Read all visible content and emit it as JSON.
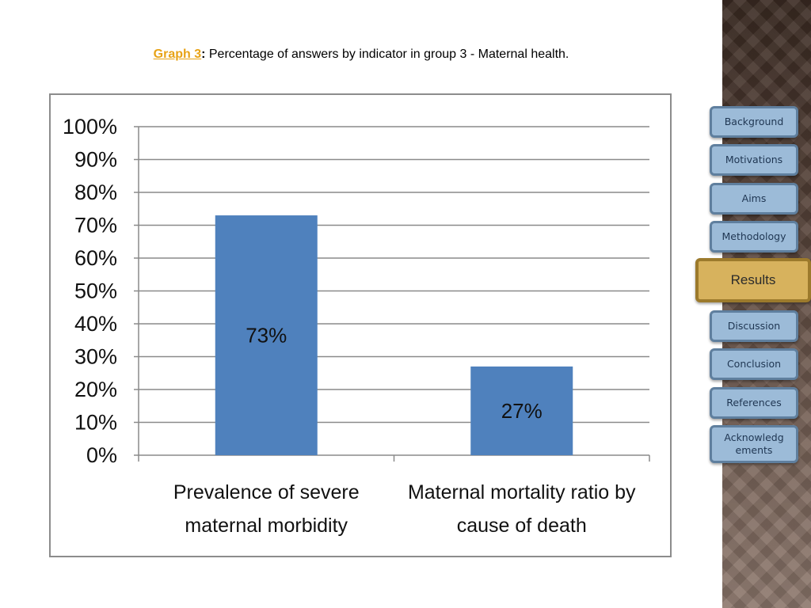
{
  "title": {
    "lead": "Graph 3",
    "colon": ":",
    "text": " Percentage of answers by indicator in group 3 - Maternal health."
  },
  "nav": {
    "items": [
      {
        "label": "Background"
      },
      {
        "label": "Motivations"
      },
      {
        "label": "Aims"
      },
      {
        "label": "Methodology"
      },
      {
        "label": "Results"
      },
      {
        "label": "Discussion"
      },
      {
        "label": "Conclusion"
      },
      {
        "label": "References"
      },
      {
        "label": "Acknowledg ements"
      }
    ],
    "active_index": 4
  },
  "colors": {
    "bar": "#4f81bd",
    "title_lead": "#e8a317",
    "nav_button": "#9cbbd8",
    "nav_active": "#d7b25d"
  },
  "chart_data": {
    "type": "bar",
    "categories": [
      "Prevalence of severe maternal morbidity",
      "Maternal mortality ratio by cause of death"
    ],
    "category_lines": [
      [
        "Prevalence of severe",
        "maternal morbidity"
      ],
      [
        "Maternal mortality ratio by",
        "cause of death"
      ]
    ],
    "values": [
      73,
      27
    ],
    "data_labels": [
      "73%",
      "27%"
    ],
    "yticks": [
      "0%",
      "10%",
      "20%",
      "30%",
      "40%",
      "50%",
      "60%",
      "70%",
      "80%",
      "90%",
      "100%"
    ],
    "ylim": [
      0,
      100
    ],
    "grid": true
  }
}
